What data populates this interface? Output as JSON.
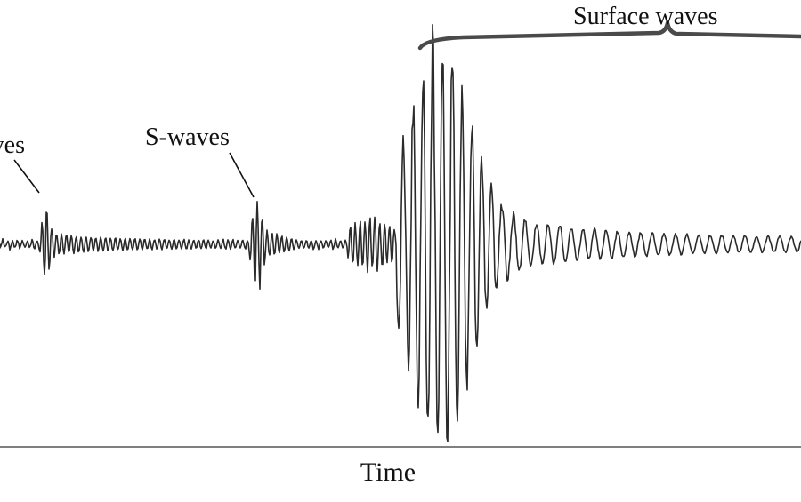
{
  "labels": {
    "p_waves": "P-waves",
    "s_waves": "S-waves",
    "surface_waves": "Surface waves",
    "time_axis": "Time"
  },
  "colors": {
    "background": "#ffffff",
    "trace": "#2b2b2b",
    "brace": "#4a4a4a",
    "axis": "#333333",
    "text": "#111111"
  }
}
